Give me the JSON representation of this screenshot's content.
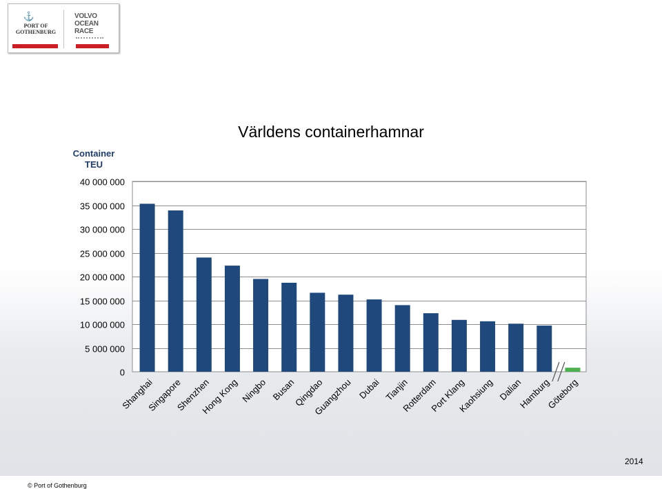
{
  "logo": {
    "left_mark": "⚓",
    "left_text": "PORT OF\nGOTHENBURG",
    "right_text": "VOLVO\nOCEAN\nRACE"
  },
  "footer": {
    "copyright_symbol": "©",
    "text": "Port of Gothenburg"
  },
  "year": "2014",
  "colors": {
    "bar": "#1f497d",
    "highlight_bar": "#4caf50",
    "y_axis_title": "#1f3d6a"
  },
  "chart_data": {
    "type": "bar",
    "title": "Världens containerhamnar",
    "ylabel": "Container TEU",
    "xlabel": "",
    "ylim": [
      0,
      40000000
    ],
    "yticks": [
      0,
      5000000,
      10000000,
      15000000,
      20000000,
      25000000,
      30000000,
      35000000,
      40000000
    ],
    "ytick_labels": [
      "0",
      "5 000 000",
      "10 000 000",
      "15 000 000",
      "20 000 000",
      "25 000 000",
      "30 000 000",
      "35 000 000",
      "40 000 000"
    ],
    "grid": true,
    "axis_break_before_last": true,
    "categories": [
      "Shanghai",
      "Singapore",
      "Shenzhen",
      "Hong Kong",
      "Ningbo",
      "Busan",
      "Qingdao",
      "Guangzhou",
      "Dubai",
      "Tianjin",
      "Rotterdam",
      "Port Klang",
      "Kaohsiung",
      "Dalian",
      "Hamburg",
      "Göteborg"
    ],
    "values": [
      35300000,
      33900000,
      24000000,
      22300000,
      19500000,
      18700000,
      16600000,
      16200000,
      15200000,
      14000000,
      12300000,
      10900000,
      10600000,
      10100000,
      9700000,
      850000
    ],
    "highlight": [
      "Göteborg"
    ]
  }
}
